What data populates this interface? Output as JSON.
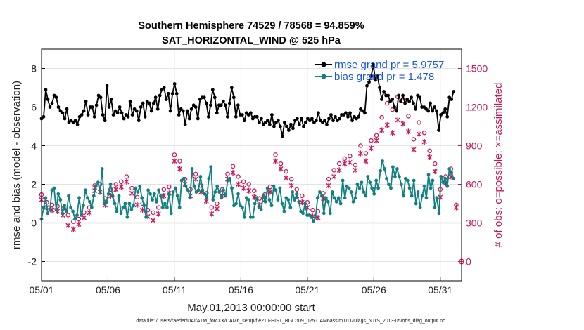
{
  "chart_data": {
    "type": "line",
    "title_line1": "Southern Hemisphere 74529 / 78568 = 94.859%",
    "title_line2": "SAT_HORIZONTAL_WIND @ 525 hPa",
    "xlabel": "May.01,2013 00:00:00 start",
    "ylabel": "rmse and bias (model - observation)",
    "y2label": "# of obs: o=possible; ×=assimilated",
    "footnote": "data file: /Users/raeder/DAI/ATM_forcXX/CAM6_setup/f.e21.FHIST_BGC.f09_025.CAM6assim.011/Diags_NTrS_2013-05/obs_diag_output.nc",
    "xlim": [
      0,
      31.6
    ],
    "ylim": [
      -3,
      9
    ],
    "y2lim": [
      -150,
      1650
    ],
    "x_ticks": [
      {
        "x": 0,
        "label": "05/01"
      },
      {
        "x": 5,
        "label": "05/06"
      },
      {
        "x": 10,
        "label": "05/11"
      },
      {
        "x": 15,
        "label": "05/16"
      },
      {
        "x": 20,
        "label": "05/21"
      },
      {
        "x": 25,
        "label": "05/26"
      },
      {
        "x": 30,
        "label": "05/31"
      }
    ],
    "y_ticks": [
      -2,
      0,
      2,
      4,
      6,
      8
    ],
    "y2_ticks": [
      0,
      300,
      600,
      900,
      1200,
      1500
    ],
    "grid": true,
    "legend_position": "top-right",
    "colors": {
      "rmse": "#000000",
      "bias": "#108080",
      "obs": "#cc1a5a",
      "zero": "#aaaaaa"
    },
    "series": [
      {
        "name": "rmse",
        "legend_label": "rmse grand pr = 5.9757",
        "values": [
          5.4,
          5.5,
          6.9,
          6.4,
          6.0,
          6.2,
          6.6,
          6.5,
          6.0,
          5.8,
          5.7,
          5.4,
          5.9,
          5.2,
          5.3,
          5.2,
          5.3,
          5.1,
          5.5,
          5.6,
          5.8,
          6.3,
          5.6,
          6.0,
          6.0,
          5.5,
          6.1,
          6.6,
          6.5,
          5.6,
          5.3,
          7.1,
          6.0,
          6.4,
          5.6,
          5.8,
          5.7,
          6.0,
          5.7,
          5.4,
          5.6,
          5.5,
          6.3,
          5.6,
          5.9,
          5.8,
          5.3,
          6.0,
          6.2,
          5.5,
          6.3,
          6.2,
          5.8,
          6.2,
          6.5,
          5.9,
          6.6,
          6.9,
          7.0,
          6.4,
          6.7,
          5.8,
          6.7,
          7.2,
          6.7,
          5.6,
          5.9,
          5.8,
          5.1,
          5.8,
          5.4,
          5.9,
          6.1,
          6.0,
          5.4,
          6.4,
          6.5,
          6.5,
          6.2,
          5.5,
          6.1,
          6.9,
          6.5,
          5.7,
          6.1,
          6.1,
          6.3,
          6.1,
          5.5,
          6.2,
          7.0,
          6.5,
          5.5,
          6.1,
          5.6,
          5.6,
          5.3,
          5.7,
          5.6,
          5.7,
          5.4,
          5.5,
          5.5,
          5.2,
          5.4,
          5.1,
          5.2,
          5.3,
          5.1,
          5.6,
          5.0,
          5.2,
          5.3,
          5.0,
          4.5,
          5.2,
          5.0,
          4.8,
          5.1,
          4.9,
          5.3,
          5.4,
          5.1,
          5.4,
          5.0,
          5.2,
          5.4,
          5.3,
          5.4,
          5.2,
          5.3,
          5.7,
          5.3,
          5.2,
          5.3,
          5.1,
          5.4,
          5.6,
          5.3,
          5.5,
          5.3,
          5.4,
          5.6,
          5.6,
          5.7,
          5.5,
          5.7,
          5.3,
          5.5,
          5.4,
          5.5,
          5.9,
          5.8,
          5.7,
          7.1,
          7.3,
          7.6,
          8.2,
          7.4,
          7.6,
          7.0,
          6.4,
          6.8,
          6.6,
          6.6,
          6.3,
          6.4,
          6.0,
          5.8,
          6.6,
          6.3,
          6.6,
          6.2,
          6.4,
          6.3,
          6.5,
          6.2,
          5.9,
          6.6,
          6.5,
          6.0,
          6.0,
          5.9,
          5.8,
          6.2,
          5.8,
          6.0,
          5.8,
          4.8,
          5.6,
          5.7,
          5.9,
          5.5,
          6.5,
          6.4,
          6.8
        ]
      },
      {
        "name": "bias",
        "legend_label": "bias grand pr = 1.478",
        "values": [
          0.2,
          0.8,
          1.3,
          0.5,
          0.7,
          1.7,
          1.8,
          0.7,
          1.5,
          1.2,
          0.5,
          0.9,
          0.6,
          1.4,
          0.8,
          0.6,
          0.2,
          0.4,
          1.3,
          0.4,
          0.9,
          1.7,
          1.3,
          1.1,
          0.8,
          1.4,
          1.9,
          2.1,
          1.6,
          2.8,
          1.0,
          1.1,
          1.5,
          2.0,
          1.4,
          1.0,
          0.6,
          1.4,
          0.5,
          0.8,
          1.0,
          0.3,
          1.0,
          0.7,
          0.9,
          1.8,
          1.6,
          1.9,
          1.3,
          0.9,
          0.3,
          1.7,
          1.5,
          1.2,
          1.5,
          1.1,
          1.7,
          1.4,
          0.8,
          1.0,
          0.8,
          1.5,
          0.5,
          1.6,
          1.8,
          1.4,
          0.8,
          2.2,
          2.3,
          1.9,
          1.7,
          1.3,
          2.8,
          1.9,
          1.6,
          1.7,
          2.4,
          1.7,
          1.5,
          1.3,
          2.3,
          2.9,
          1.2,
          1.6,
          1.9,
          1.6,
          1.3,
          1.7,
          1.4,
          2.2,
          2.3,
          1.8,
          0.9,
          1.0,
          1.5,
          0.9,
          0.8,
          0.3,
          1.3,
          1.2,
          0.3,
          0.3,
          1.0,
          1.3,
          0.8,
          0.7,
          1.4,
          1.1,
          1.8,
          1.2,
          0.9,
          1.9,
          1.7,
          1.2,
          1.8,
          1.0,
          0.6,
          1.3,
          1.2,
          0.8,
          1.6,
          1.2,
          1.5,
          1.1,
          0.6,
          0.5,
          1.0,
          0.4,
          0.4,
          0.3,
          0.1,
          0.3,
          1.3,
          1.6,
          1.4,
          0.5,
          1.3,
          1.1,
          0.5,
          1.6,
          1.3,
          1.1,
          1.3,
          1.0,
          2.2,
          1.3,
          1.9,
          1.8,
          1.6,
          1.1,
          1.3,
          2.0,
          1.8,
          2.1,
          1.6,
          1.4,
          2.4,
          2.1,
          1.8,
          1.5,
          2.2,
          1.8,
          2.7,
          3.2,
          2.8,
          2.3,
          2.0,
          1.8,
          2.9,
          2.4,
          2.8,
          2.4,
          2.0,
          1.4,
          2.3,
          2.2,
          1.8,
          1.4,
          2.2,
          1.0,
          1.6,
          0.8,
          1.4,
          1.9,
          1.3,
          2.5,
          1.8,
          2.2,
          0.8,
          1.3,
          0.5,
          2.4,
          2.1,
          2.3,
          1.9,
          2.8,
          2.6,
          2.3
        ]
      }
    ],
    "obs_possible": [
      [
        0.0,
        520
      ],
      [
        0.4,
        460
      ],
      [
        0.8,
        440
      ],
      [
        1.2,
        430
      ],
      [
        1.6,
        410
      ],
      [
        2.0,
        360
      ],
      [
        2.4,
        310
      ],
      [
        2.8,
        330
      ],
      [
        3.2,
        380
      ],
      [
        3.6,
        420
      ],
      [
        4.0,
        590
      ],
      [
        4.4,
        600
      ],
      [
        4.8,
        490
      ],
      [
        5.2,
        560
      ],
      [
        5.6,
        600
      ],
      [
        6.0,
        620
      ],
      [
        6.4,
        660
      ],
      [
        6.8,
        570
      ],
      [
        7.2,
        500
      ],
      [
        7.6,
        450
      ],
      [
        8.0,
        400
      ],
      [
        8.4,
        380
      ],
      [
        8.8,
        420
      ],
      [
        9.2,
        560
      ],
      [
        9.6,
        580
      ],
      [
        10.0,
        830
      ],
      [
        10.4,
        780
      ],
      [
        10.8,
        640
      ],
      [
        11.2,
        560
      ],
      [
        11.6,
        680
      ],
      [
        12.0,
        590
      ],
      [
        12.4,
        530
      ],
      [
        12.8,
        420
      ],
      [
        13.2,
        450
      ],
      [
        13.6,
        560
      ],
      [
        14.0,
        680
      ],
      [
        14.4,
        740
      ],
      [
        14.8,
        660
      ],
      [
        15.2,
        620
      ],
      [
        15.6,
        600
      ],
      [
        16.0,
        550
      ],
      [
        16.4,
        490
      ],
      [
        16.8,
        520
      ],
      [
        17.2,
        580
      ],
      [
        17.6,
        830
      ],
      [
        18.0,
        760
      ],
      [
        18.4,
        700
      ],
      [
        18.8,
        640
      ],
      [
        19.2,
        560
      ],
      [
        19.6,
        510
      ],
      [
        20.0,
        460
      ],
      [
        20.4,
        400
      ],
      [
        20.8,
        390
      ],
      [
        21.2,
        530
      ],
      [
        21.6,
        640
      ],
      [
        22.0,
        710
      ],
      [
        22.4,
        760
      ],
      [
        22.8,
        800
      ],
      [
        23.2,
        820
      ],
      [
        23.6,
        750
      ],
      [
        24.0,
        900
      ],
      [
        24.4,
        840
      ],
      [
        24.8,
        940
      ],
      [
        25.2,
        980
      ],
      [
        25.6,
        1120
      ],
      [
        26.0,
        1230
      ],
      [
        26.4,
        1180
      ],
      [
        26.8,
        1280
      ],
      [
        27.2,
        1250
      ],
      [
        27.6,
        1130
      ],
      [
        28.0,
        950
      ],
      [
        28.4,
        1080
      ],
      [
        28.8,
        1000
      ],
      [
        29.2,
        860
      ],
      [
        29.6,
        760
      ],
      [
        30.0,
        560
      ],
      [
        30.4,
        660
      ],
      [
        30.8,
        720
      ],
      [
        31.2,
        440
      ]
    ],
    "obs_assimilated": [
      [
        0.0,
        480
      ],
      [
        0.4,
        420
      ],
      [
        0.8,
        400
      ],
      [
        1.2,
        390
      ],
      [
        1.6,
        360
      ],
      [
        2.0,
        280
      ],
      [
        2.4,
        250
      ],
      [
        2.8,
        290
      ],
      [
        3.2,
        340
      ],
      [
        3.6,
        380
      ],
      [
        4.0,
        550
      ],
      [
        4.4,
        540
      ],
      [
        4.8,
        440
      ],
      [
        5.2,
        510
      ],
      [
        5.6,
        560
      ],
      [
        6.0,
        580
      ],
      [
        6.4,
        620
      ],
      [
        6.8,
        530
      ],
      [
        7.2,
        440
      ],
      [
        7.6,
        400
      ],
      [
        8.0,
        350
      ],
      [
        8.4,
        320
      ],
      [
        8.8,
        370
      ],
      [
        9.2,
        510
      ],
      [
        9.6,
        530
      ],
      [
        10.0,
        780
      ],
      [
        10.4,
        720
      ],
      [
        10.8,
        600
      ],
      [
        11.2,
        510
      ],
      [
        11.6,
        640
      ],
      [
        12.0,
        540
      ],
      [
        12.4,
        470
      ],
      [
        12.8,
        370
      ],
      [
        13.2,
        410
      ],
      [
        13.6,
        510
      ],
      [
        14.0,
        640
      ],
      [
        14.4,
        690
      ],
      [
        14.8,
        600
      ],
      [
        15.2,
        570
      ],
      [
        15.6,
        550
      ],
      [
        16.0,
        500
      ],
      [
        16.4,
        440
      ],
      [
        16.8,
        480
      ],
      [
        17.2,
        540
      ],
      [
        17.6,
        780
      ],
      [
        18.0,
        720
      ],
      [
        18.4,
        650
      ],
      [
        18.8,
        590
      ],
      [
        19.2,
        510
      ],
      [
        19.6,
        460
      ],
      [
        20.0,
        420
      ],
      [
        20.4,
        350
      ],
      [
        20.8,
        340
      ],
      [
        21.2,
        490
      ],
      [
        21.6,
        590
      ],
      [
        22.0,
        660
      ],
      [
        22.4,
        710
      ],
      [
        22.8,
        760
      ],
      [
        23.2,
        770
      ],
      [
        23.6,
        710
      ],
      [
        24.0,
        840
      ],
      [
        24.4,
        780
      ],
      [
        24.8,
        880
      ],
      [
        25.2,
        940
      ],
      [
        25.6,
        1020
      ],
      [
        26.0,
        1060
      ],
      [
        26.4,
        1000
      ],
      [
        26.8,
        1100
      ],
      [
        27.2,
        1070
      ],
      [
        27.6,
        1010
      ],
      [
        28.0,
        870
      ],
      [
        28.4,
        990
      ],
      [
        28.8,
        930
      ],
      [
        29.2,
        810
      ],
      [
        29.6,
        700
      ],
      [
        30.0,
        500
      ],
      [
        30.4,
        610
      ],
      [
        30.8,
        660
      ],
      [
        31.2,
        420
      ]
    ],
    "obs_edge": [
      {
        "x": 31.6,
        "y2": 0
      }
    ]
  }
}
